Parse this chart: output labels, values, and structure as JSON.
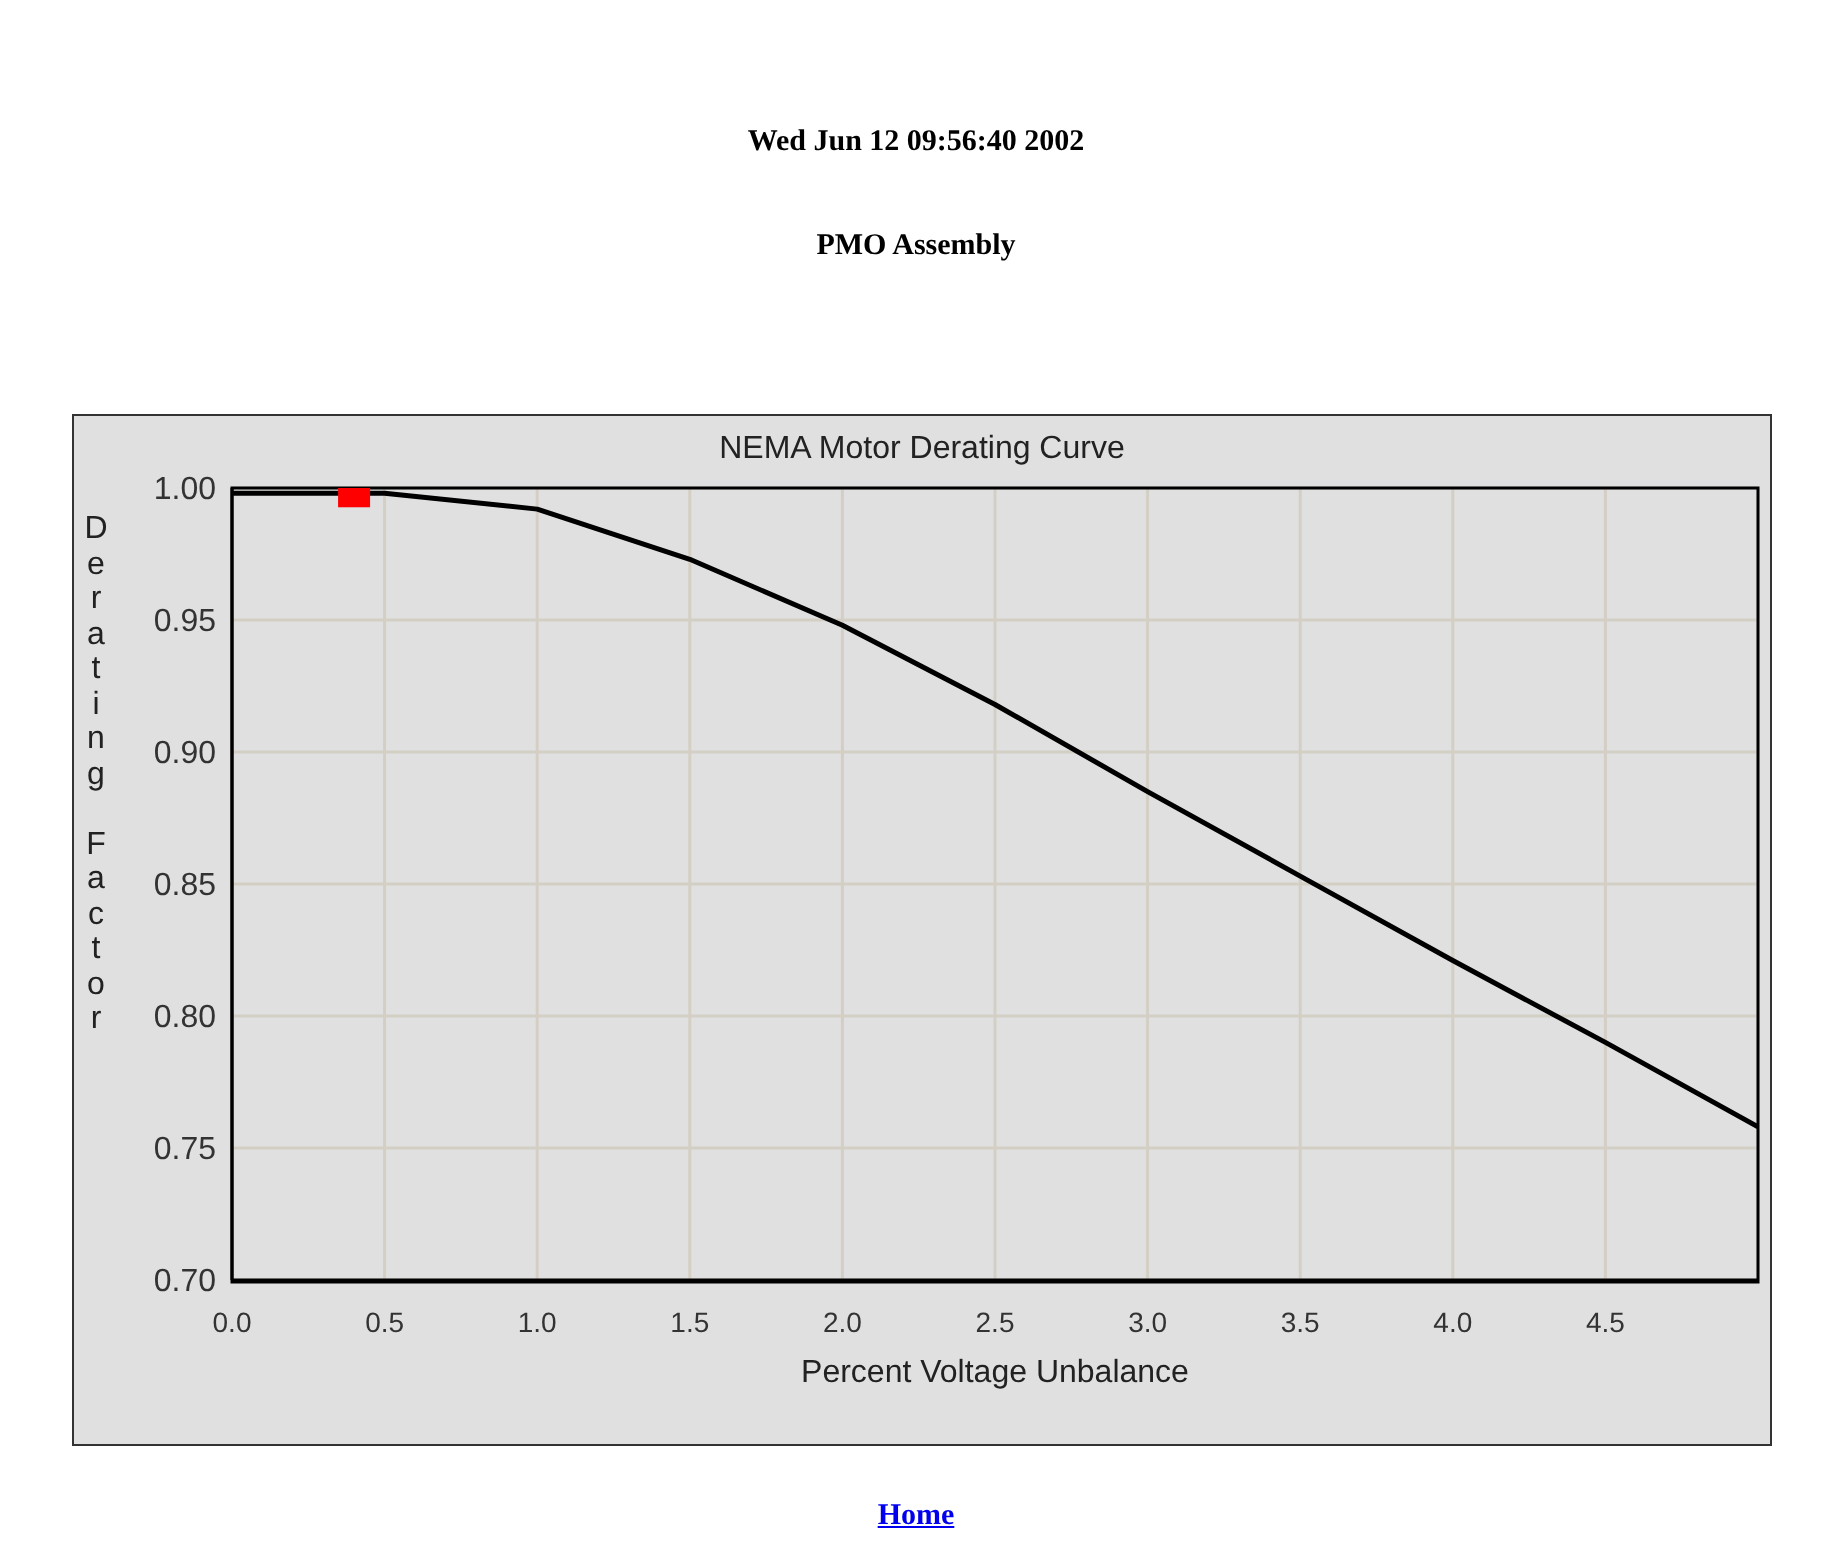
{
  "chart_data": {
    "type": "line",
    "title": "NEMA Motor Derating Curve",
    "subtitle": "Wed Jun 12 09:56:40 2002",
    "annotations": [
      "PMO Assembly",
      "Home"
    ],
    "xlabel": "Percent Voltage Unbalance",
    "ylabel": "Derating Factor",
    "series": [
      {
        "color": "#000000",
        "marker": "none",
        "x": [
          0,
          0.5,
          1.0,
          1.5,
          2.0,
          2.5,
          3.0,
          3.5,
          4.0,
          4.5,
          5.0
        ],
        "values": [
          0.998,
          0.998,
          0.992,
          0.973,
          0.948,
          0.918,
          0.885,
          0.853,
          0.821,
          0.79,
          0.758
        ]
      },
      {
        "type": "scatter",
        "color": "#ff0000",
        "marker": "square",
        "x": [
          0.4
        ],
        "values": [
          0.998
        ]
      }
    ],
    "xlim": [
      0,
      5
    ],
    "xticks": [
      {
        "value": 0,
        "label": "0.0"
      },
      0.5,
      {
        "value": 1,
        "label": "1.0"
      },
      1.5,
      {
        "value": 2,
        "label": "2.0"
      },
      2.5,
      {
        "value": 3,
        "label": "3.0"
      },
      3.5,
      {
        "value": 4,
        "label": "4.0"
      },
      4.5
    ],
    "ylim": [
      0.7,
      1.0
    ],
    "yticks": [
      {
        "value": 0.7,
        "label": "0.70"
      },
      {
        "value": 0.75,
        "label": "0.75"
      },
      {
        "value": 0.8,
        "label": "0.80"
      },
      {
        "value": 0.85,
        "label": "0.85"
      },
      {
        "value": 0.9,
        "label": "0.90"
      },
      {
        "value": 0.95,
        "label": "0.95"
      },
      {
        "value": 1.0,
        "label": "1.00"
      }
    ],
    "grid": true
  }
}
